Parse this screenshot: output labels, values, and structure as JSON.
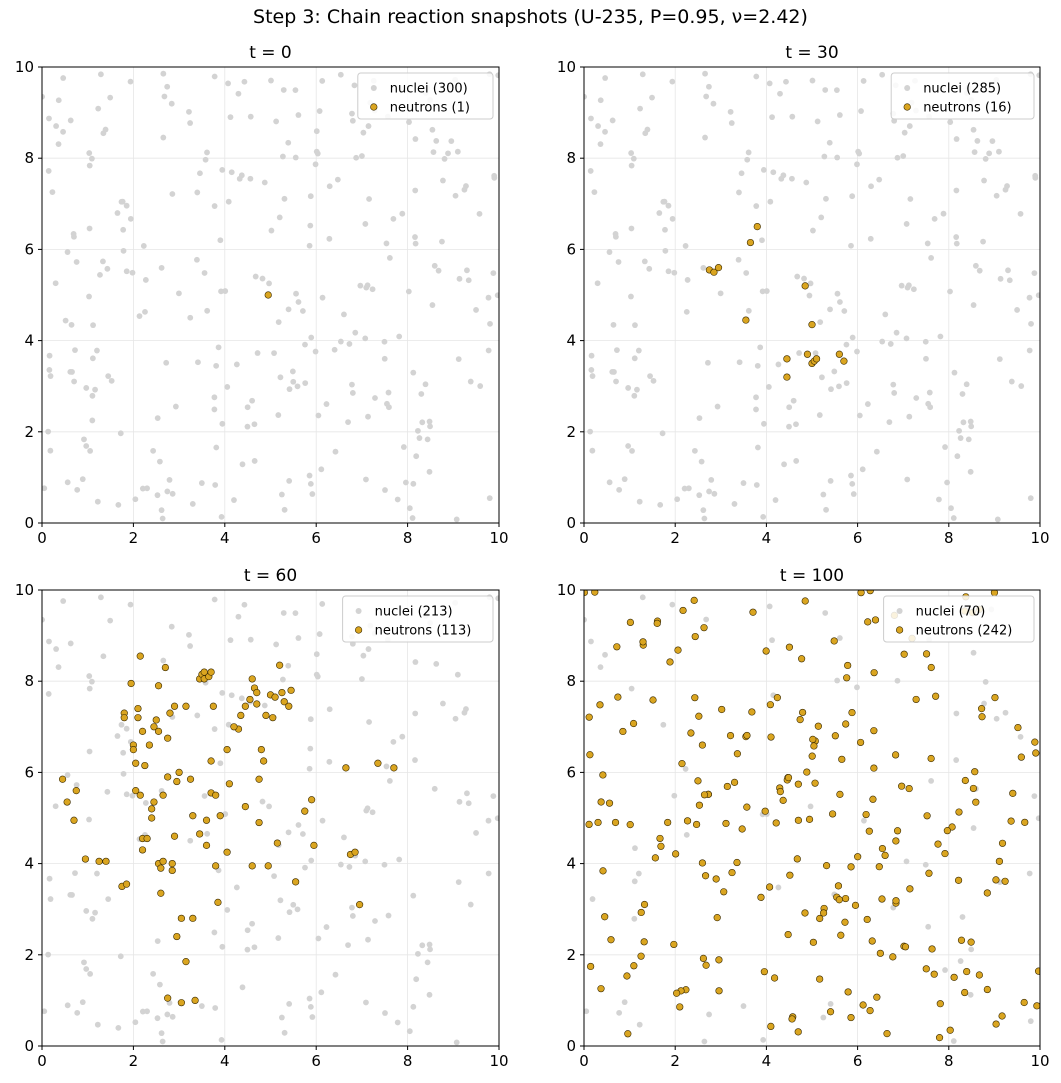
{
  "figure": {
    "title": "Step 3: Chain reaction snapshots (U-235, P=0.95, ν=2.42)"
  },
  "colors": {
    "nucleus": "#d3d3d3",
    "neutron": "#daa520",
    "neutron_edge": "#3a2a00",
    "grid": "#e6e6e6",
    "axes": "#000000"
  },
  "chart_data": [
    {
      "type": "scatter",
      "title": "t = 0",
      "xlim": [
        0,
        10
      ],
      "ylim": [
        0,
        10
      ],
      "xticks": [
        0,
        2,
        4,
        6,
        8,
        10
      ],
      "yticks": [
        0,
        2,
        4,
        6,
        8,
        10
      ],
      "grid": true,
      "legend_position": "top-right",
      "series": [
        {
          "name": "nuclei (300)",
          "kind": "nuclei",
          "count": 300
        },
        {
          "name": "neutrons (1)",
          "kind": "neutrons",
          "count": 1,
          "points": [
            [
              4.95,
              5.0
            ]
          ]
        }
      ]
    },
    {
      "type": "scatter",
      "title": "t = 30",
      "xlim": [
        0,
        10
      ],
      "ylim": [
        0,
        10
      ],
      "xticks": [
        0,
        2,
        4,
        6,
        8,
        10
      ],
      "yticks": [
        0,
        2,
        4,
        6,
        8,
        10
      ],
      "grid": true,
      "legend_position": "top-right",
      "series": [
        {
          "name": "nuclei (285)",
          "kind": "nuclei",
          "count": 285
        },
        {
          "name": "neutrons (16)",
          "kind": "neutrons",
          "count": 16,
          "points": [
            [
              2.75,
              5.55
            ],
            [
              2.85,
              5.5
            ],
            [
              2.95,
              5.6
            ],
            [
              3.8,
              6.5
            ],
            [
              3.65,
              6.15
            ],
            [
              3.55,
              4.45
            ],
            [
              4.45,
              3.6
            ],
            [
              4.45,
              3.2
            ],
            [
              4.85,
              5.2
            ],
            [
              4.9,
              3.7
            ],
            [
              5.0,
              4.35
            ],
            [
              5.0,
              3.5
            ],
            [
              5.05,
              3.55
            ],
            [
              5.1,
              3.6
            ],
            [
              5.6,
              3.7
            ],
            [
              5.7,
              3.55
            ]
          ]
        }
      ]
    },
    {
      "type": "scatter",
      "title": "t = 60",
      "xlim": [
        0,
        10
      ],
      "ylim": [
        0,
        10
      ],
      "xticks": [
        0,
        2,
        4,
        6,
        8,
        10
      ],
      "yticks": [
        0,
        2,
        4,
        6,
        8,
        10
      ],
      "grid": true,
      "legend_position": "top-right",
      "series": [
        {
          "name": "nuclei (213)",
          "kind": "nuclei",
          "count": 213
        },
        {
          "name": "neutrons (113)",
          "kind": "neutrons",
          "count": 113,
          "points": [
            [
              0.45,
              5.85
            ],
            [
              0.55,
              5.35
            ],
            [
              0.7,
              4.95
            ],
            [
              0.75,
              5.6
            ],
            [
              0.95,
              4.1
            ],
            [
              1.25,
              4.05
            ],
            [
              1.4,
              4.05
            ],
            [
              1.75,
              3.5
            ],
            [
              1.8,
              7.3
            ],
            [
              1.8,
              7.2
            ],
            [
              1.85,
              3.55
            ],
            [
              1.95,
              7.95
            ],
            [
              2.0,
              6.6
            ],
            [
              2.0,
              6.5
            ],
            [
              2.05,
              6.2
            ],
            [
              2.05,
              5.6
            ],
            [
              2.1,
              7.4
            ],
            [
              2.1,
              7.2
            ],
            [
              2.15,
              8.55
            ],
            [
              2.15,
              5.5
            ],
            [
              2.2,
              4.55
            ],
            [
              2.2,
              4.3
            ],
            [
              2.25,
              6.15
            ],
            [
              2.3,
              4.55
            ],
            [
              2.35,
              6.6
            ],
            [
              2.4,
              5.2
            ],
            [
              2.4,
              5.0
            ],
            [
              2.45,
              7.0
            ],
            [
              2.5,
              7.15
            ],
            [
              2.55,
              7.9
            ],
            [
              2.55,
              6.9
            ],
            [
              2.55,
              4.0
            ],
            [
              2.6,
              3.9
            ],
            [
              2.6,
              3.35
            ],
            [
              2.65,
              5.5
            ],
            [
              2.65,
              4.05
            ],
            [
              2.7,
              8.3
            ],
            [
              2.75,
              6.75
            ],
            [
              2.75,
              5.9
            ],
            [
              2.75,
              1.05
            ],
            [
              2.8,
              7.3
            ],
            [
              2.85,
              4.0
            ],
            [
              2.85,
              3.85
            ],
            [
              2.9,
              7.45
            ],
            [
              2.9,
              4.6
            ],
            [
              2.95,
              5.8
            ],
            [
              2.95,
              2.4
            ],
            [
              3.05,
              2.8
            ],
            [
              3.05,
              0.95
            ],
            [
              3.15,
              7.45
            ],
            [
              3.15,
              1.85
            ],
            [
              3.3,
              5.05
            ],
            [
              3.3,
              2.8
            ],
            [
              3.35,
              1.0
            ],
            [
              3.45,
              8.05
            ],
            [
              3.45,
              4.65
            ],
            [
              3.5,
              8.15
            ],
            [
              3.55,
              8.2
            ],
            [
              3.55,
              8.05
            ],
            [
              3.6,
              4.4
            ],
            [
              3.65,
              8.1
            ],
            [
              3.7,
              8.2
            ],
            [
              3.7,
              6.25
            ],
            [
              3.7,
              5.55
            ],
            [
              3.75,
              7.45
            ],
            [
              3.8,
              5.5
            ],
            [
              3.8,
              3.95
            ],
            [
              3.85,
              3.15
            ],
            [
              3.9,
              5.05
            ],
            [
              4.05,
              6.5
            ],
            [
              4.05,
              4.25
            ],
            [
              4.1,
              5.75
            ],
            [
              4.3,
              6.95
            ],
            [
              4.35,
              7.25
            ],
            [
              4.45,
              7.45
            ],
            [
              4.55,
              7.6
            ],
            [
              4.6,
              8.05
            ],
            [
              4.6,
              3.95
            ],
            [
              4.65,
              7.85
            ],
            [
              4.7,
              7.5
            ],
            [
              4.7,
              7.75
            ],
            [
              4.75,
              5.85
            ],
            [
              4.75,
              4.9
            ],
            [
              4.8,
              6.5
            ],
            [
              4.85,
              6.25
            ],
            [
              4.9,
              7.25
            ],
            [
              5.0,
              7.7
            ],
            [
              5.05,
              7.2
            ],
            [
              5.1,
              7.65
            ],
            [
              5.15,
              4.45
            ],
            [
              5.2,
              8.35
            ],
            [
              5.25,
              7.75
            ],
            [
              5.3,
              7.55
            ],
            [
              5.4,
              7.45
            ],
            [
              5.45,
              7.8
            ],
            [
              5.55,
              3.6
            ],
            [
              5.75,
              5.15
            ],
            [
              5.9,
              5.4
            ],
            [
              5.95,
              4.4
            ],
            [
              6.65,
              6.1
            ],
            [
              6.75,
              4.2
            ],
            [
              6.85,
              4.25
            ],
            [
              6.95,
              3.1
            ],
            [
              7.35,
              6.2
            ],
            [
              7.7,
              6.1
            ],
            [
              2.2,
              6.9
            ],
            [
              3.0,
              6.0
            ],
            [
              3.25,
              5.85
            ],
            [
              4.2,
              7.0
            ],
            [
              4.45,
              5.25
            ],
            [
              2.45,
              5.35
            ],
            [
              3.6,
              4.95
            ],
            [
              4.95,
              3.95
            ]
          ]
        }
      ]
    },
    {
      "type": "scatter",
      "title": "t = 100",
      "xlim": [
        0,
        10
      ],
      "ylim": [
        0,
        10
      ],
      "xticks": [
        0,
        2,
        4,
        6,
        8,
        10
      ],
      "yticks": [
        0,
        2,
        4,
        6,
        8,
        10
      ],
      "grid": true,
      "legend_position": "top-right",
      "series": [
        {
          "name": "nuclei (70)",
          "kind": "nuclei",
          "count": 70
        },
        {
          "name": "neutrons (242)",
          "kind": "neutrons",
          "count": 242,
          "points": []
        }
      ]
    }
  ]
}
